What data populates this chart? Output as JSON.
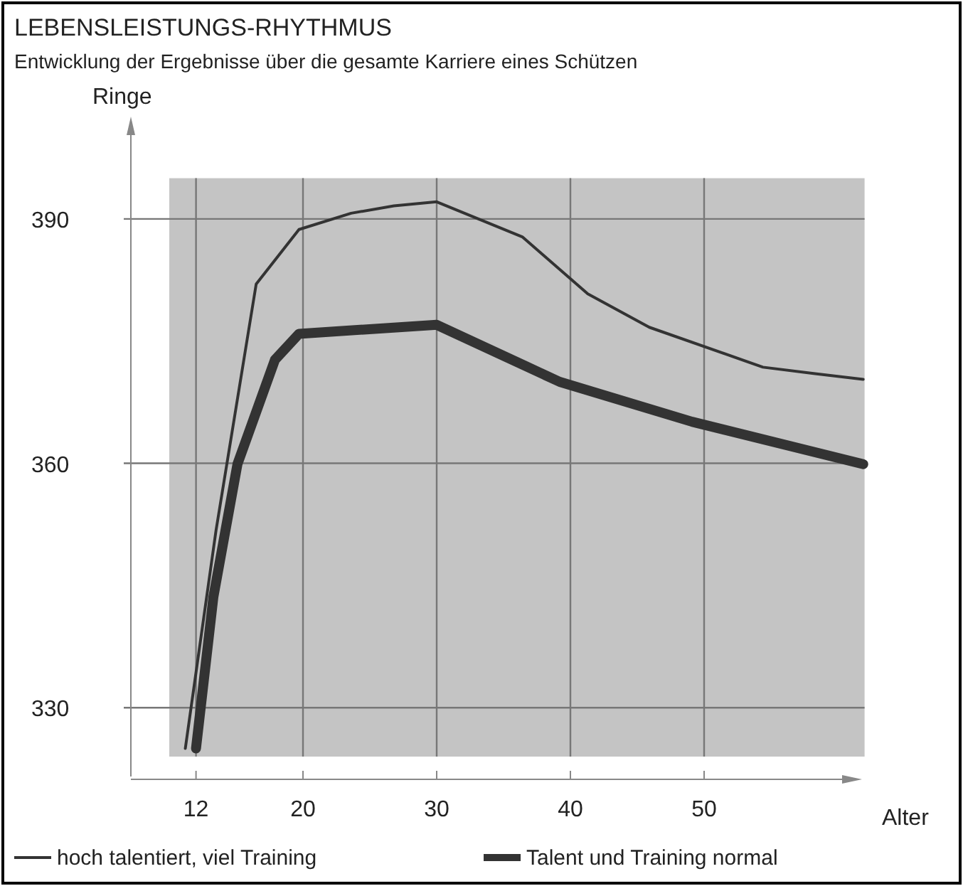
{
  "chart_data": {
    "type": "line",
    "title": "LEBENSLEISTUNGS-RHYTHMUS",
    "subtitle": "Entwicklung der Ergebnisse über die gesamte Karriere eines Schützen",
    "xlabel": "Alter",
    "ylabel": "Ringe",
    "xlim": [
      10,
      62
    ],
    "ylim": [
      324,
      395
    ],
    "xticks": [
      12,
      20,
      30,
      40,
      50
    ],
    "yticks": [
      330,
      360,
      390
    ],
    "grid": true,
    "legend": "bottom",
    "marker": "none",
    "line_style": "solid",
    "series": [
      {
        "name": "hoch talentiert, viel Training",
        "color": "#333333",
        "x": [
          11.2,
          13.5,
          16.5,
          19.7,
          23.6,
          26.8,
          30,
          36.4,
          41.3,
          45.9,
          54.4,
          58.3,
          61.9
        ],
        "values": [
          325,
          351.8,
          382,
          388.7,
          390.7,
          391.6,
          392.1,
          387.8,
          380.8,
          376.7,
          371.8,
          371,
          370.3
        ]
      },
      {
        "name": "Talent und Training normal",
        "color": "#333333",
        "x": [
          12,
          13.3,
          15.1,
          17.9,
          19.7,
          30,
          39.2,
          49.1,
          61.9
        ],
        "values": [
          325,
          343.6,
          359.9,
          372.7,
          375.9,
          377,
          370,
          365.1,
          359.9
        ]
      }
    ]
  }
}
